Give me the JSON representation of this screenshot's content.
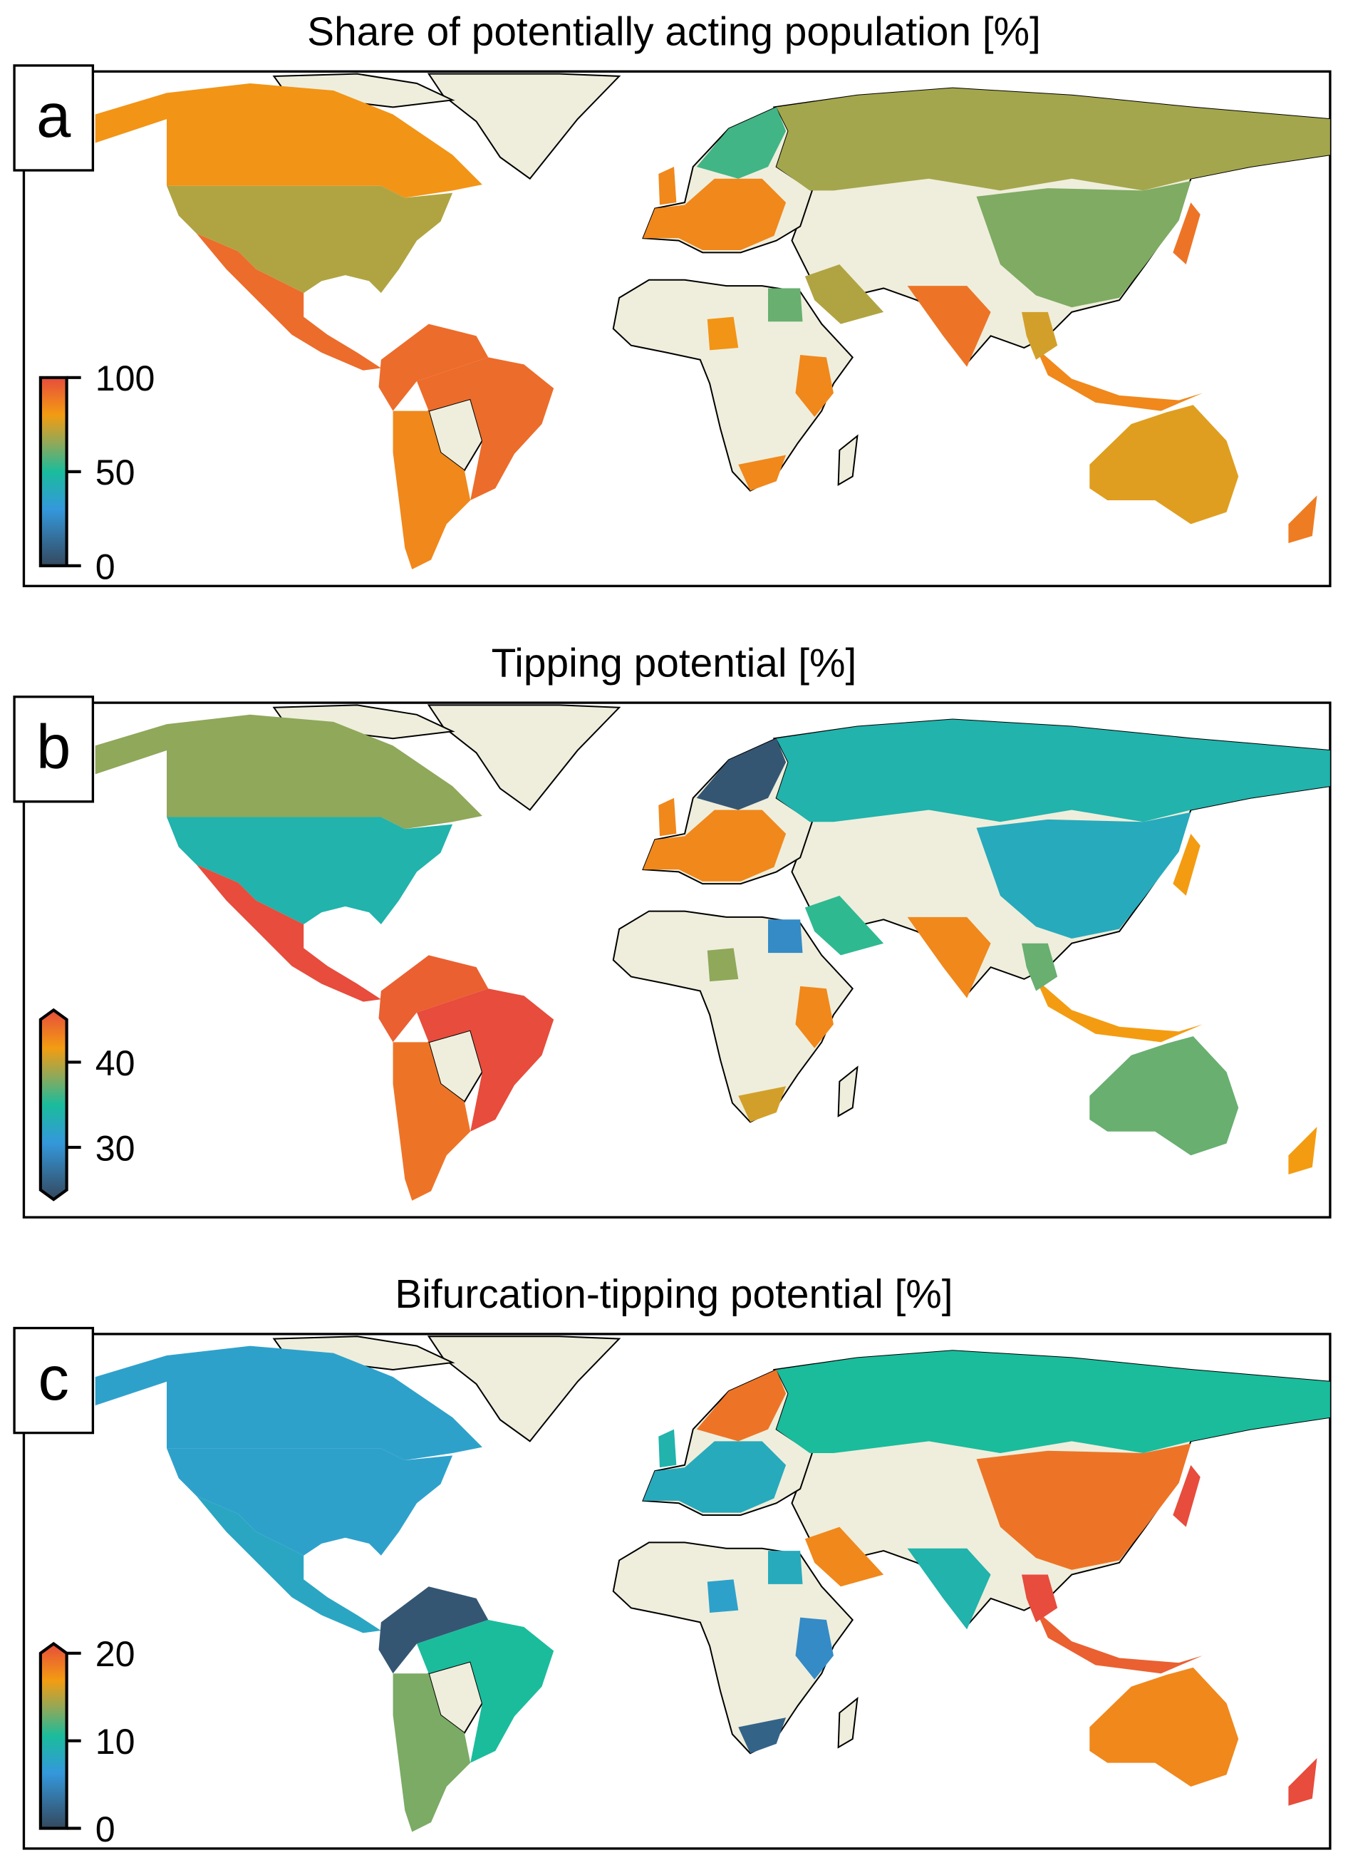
{
  "colors": {
    "land_no_data": "#efeedc",
    "ocean": "#ffffff",
    "border": "#000000",
    "colormap": [
      "#34495e",
      "#3498db",
      "#1abc9c",
      "#8fa85a",
      "#f39c12",
      "#e74c3c"
    ]
  },
  "chart_data": [
    {
      "type": "choropleth",
      "panel_label": "a",
      "title": "Share of potentially acting population [%]",
      "colorbar": {
        "min": 0,
        "max": 100,
        "ticks": [
          "100",
          "50",
          "0"
        ],
        "tick_values": [
          100,
          50,
          0
        ],
        "extend": "neither"
      },
      "values": {
        "Canada": 82,
        "USA": 70,
        "Mexico": 92,
        "Colombia-Venezuela": 92,
        "Brazil": 92,
        "Argentina-Chile": 85,
        "Europe": 85,
        "Scandinavia": 55,
        "UK": 85,
        "Russia": 68,
        "China": 63,
        "India": 90,
        "Saudi Arabia": 70,
        "Egypt": 60,
        "Nigeria": 82,
        "East Africa": 85,
        "South Africa": 85,
        "Japan": 90,
        "Indonesia": 85,
        "Southeast Asia": 75,
        "Australia": 77,
        "New Zealand": 88
      }
    },
    {
      "type": "choropleth",
      "panel_label": "b",
      "title": "Tipping potential [%]",
      "colorbar": {
        "min": 25,
        "max": 45,
        "ticks": [
          "40",
          "30"
        ],
        "tick_values": [
          40,
          30
        ],
        "extend": "both"
      },
      "values": {
        "Canada": 38,
        "USA": 34,
        "Mexico": 45,
        "Colombia-Venezuela": 44,
        "Brazil": 45,
        "Argentina-Chile": 43,
        "Europe": 42,
        "Scandinavia": 26,
        "UK": 42,
        "Russia": 34,
        "China": 33,
        "India": 42,
        "Saudi Arabia": 35.5,
        "Egypt": 30,
        "Nigeria": 38,
        "East Africa": 42,
        "South Africa": 40,
        "Japan": 41,
        "Indonesia": 41,
        "Southeast Asia": 37,
        "Australia": 37,
        "New Zealand": 41
      }
    },
    {
      "type": "choropleth",
      "panel_label": "c",
      "title": "Bifurcation-tipping potential [%]",
      "colorbar": {
        "min": 0,
        "max": 20,
        "ticks": [
          "20",
          "10",
          "0"
        ],
        "tick_values": [
          20,
          10,
          0
        ],
        "extend": "max"
      },
      "values": {
        "Canada": 7,
        "USA": 7,
        "Mexico": 7.5,
        "Colombia-Venezuela": 1,
        "Brazil": 10,
        "Argentina-Chile": 12.5,
        "Europe": 8,
        "Scandinavia": 18,
        "UK": 9,
        "Russia": 10,
        "China": 18,
        "India": 9,
        "Saudi Arabia": 17,
        "Egypt": 8,
        "Nigeria": 7,
        "East Africa": 5,
        "South Africa": 2,
        "Japan": 20,
        "Indonesia": 19,
        "Southeast Asia": 20,
        "Australia": 17,
        "New Zealand": 20
      }
    }
  ]
}
